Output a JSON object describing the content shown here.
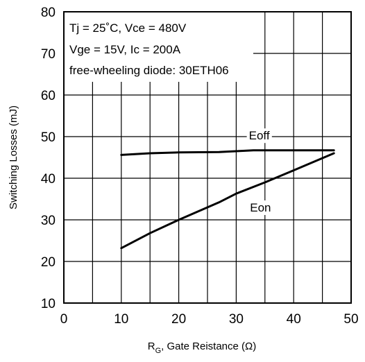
{
  "chart_data": {
    "type": "line",
    "xlabel_main": "R",
    "xlabel_sub": "G",
    "xlabel_rest": ", Gate Reistance (Ω)",
    "ylabel": "Switching Losses (mJ)",
    "xlim": [
      0,
      50
    ],
    "ylim": [
      10,
      80
    ],
    "xticks": [
      0,
      10,
      20,
      30,
      40,
      50
    ],
    "yticks": [
      10,
      20,
      30,
      40,
      50,
      60,
      70,
      80
    ],
    "x_minor_gridlines": [
      5,
      15,
      25,
      35,
      45
    ],
    "grid": true,
    "conditions": [
      "Tj = 25˚C, Vce = 480V",
      "Vge = 15V, Ic = 200A",
      "free-wheeling diode: 30ETH06"
    ],
    "series": [
      {
        "name": "Eoff",
        "x": [
          10,
          15,
          20,
          27,
          33,
          40,
          47
        ],
        "y": [
          45.6,
          46.0,
          46.2,
          46.3,
          46.7,
          46.7,
          46.7
        ]
      },
      {
        "name": "Eon",
        "x": [
          10,
          15,
          20,
          27,
          30,
          35,
          40,
          47
        ],
        "y": [
          23.2,
          26.8,
          30.0,
          34.2,
          36.3,
          39.0,
          41.9,
          46.0
        ]
      }
    ]
  }
}
